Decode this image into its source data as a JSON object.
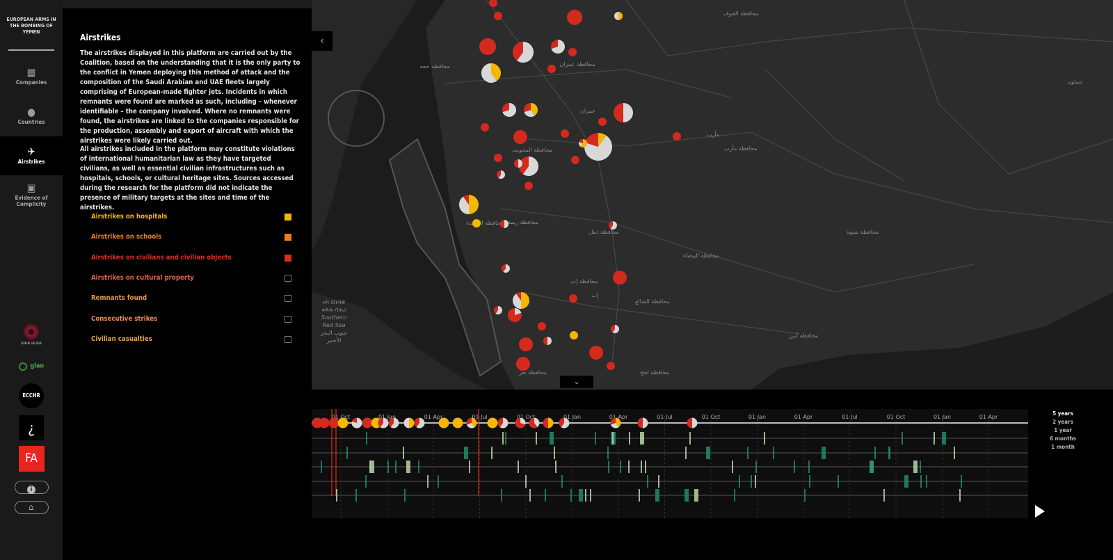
{
  "brand": {
    "title": "EUROPEAN ARMS IN THE BOMBING OF YEMEN"
  },
  "nav": [
    {
      "label": "Companies",
      "icon": "building-icon"
    },
    {
      "label": "Countries",
      "icon": "globe-icon"
    },
    {
      "label": "Airstrikes",
      "icon": "airplane-icon",
      "active": true
    },
    {
      "label": "Evidence of Complicity",
      "icon": "document-search-icon"
    }
  ],
  "partners": [
    {
      "label": "YEMENI ARCHIVE"
    },
    {
      "label": "glan"
    },
    {
      "label": "ECCHR"
    },
    {
      "label": "FA"
    }
  ],
  "panel": {
    "title": "Airstrikes",
    "paragraph1": "The airstrikes displayed in this platform are carried out by the Coalition, based on the understanding that it is the only party to the conflict in Yemen deploying this method of attack and the composition of the Saudi Arabian and UAE fleets largely comprising of European-made fighter jets. Incidents in which remnants were found are marked as such, including – whenever identifiable – the company involved. Where no remnants were found, the airstrikes are linked to the companies responsible for the production, assembly and export of aircraft with which the airstrikes were likely carried out.",
    "paragraph2": "All airstrikes included in the platform may constitute violations of international humanitarian law as they have targeted civilians, as well as essential civilian infrastructures such as hospitals, schools, or cultural heritage sites. Sources accessed during the research for the platform did not indicate the presence of military targets at the sites and time of the airstrikes."
  },
  "legend": [
    {
      "label": "Airstrikes on hospitals",
      "color": "#f5b800",
      "checked": true
    },
    {
      "label": "Airstrikes on schools",
      "color": "#f07f12",
      "checked": true
    },
    {
      "label": "Airstrikes on civilians and civilian objects",
      "color": "#e02b1c",
      "checked": true
    },
    {
      "label": "Airstrikes on cultural property",
      "color": "#e0674a",
      "checked": false
    },
    {
      "label": "Remnants found",
      "color": "#e89a4a",
      "checked": false
    },
    {
      "label": "Consecutive strikes",
      "color": "#e8905a",
      "checked": false
    },
    {
      "label": "Civilian casualties",
      "color": "#f0a040",
      "checked": false
    }
  ],
  "map": {
    "labels": [
      "محافظة الجوف",
      "محافظة عمران",
      "محافظة حجة",
      "عمران",
      "مأرب",
      "محافظة مأرب",
      "محافظة المحويت",
      "محافظة ريمة",
      "محافظة ذمار",
      "محافظة البيضاء",
      "محافظة شبوة",
      "محافظة إب",
      "إب",
      "محافظة الضالع",
      "محافظة أبين",
      "محافظة لحج",
      "محافظة تعز",
      "سيئون",
      "محافظة الحديدة"
    ],
    "sea_label": [
      "ዞባ ደቡባዊ",
      "ቀይሕ ባሕሪ",
      "Southern",
      "Red Sea",
      "جنوب البحر",
      "الأحمر"
    ],
    "colors": {
      "hospital": "#f5b800",
      "civilian": "#d42a1e",
      "other": "#d8d8d8"
    }
  },
  "timeline": {
    "ticks": [
      "01 Oct",
      "01 Jan",
      "01 Apr",
      "01 Jul",
      "01 Oct",
      "01 Jan",
      "01 Apr",
      "01 Jul",
      "01 Oct",
      "01 Jan",
      "01 Apr",
      "01 Jul",
      "01 Oct",
      "01 Jan",
      "01 Apr"
    ],
    "ranges": [
      "5 years",
      "2 years",
      "1 year",
      "6 months",
      "1 month"
    ],
    "selected_range": "5 years"
  }
}
